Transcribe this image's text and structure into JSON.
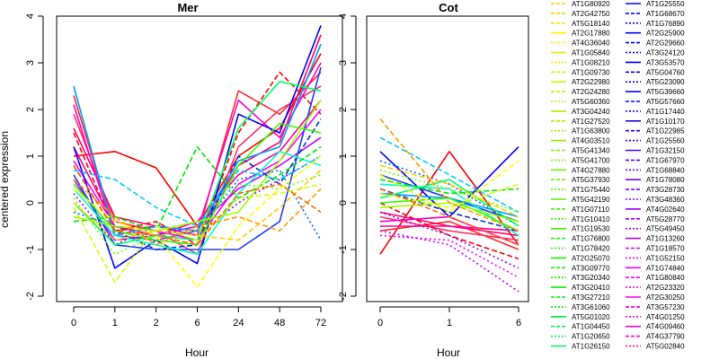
{
  "chart_data": [
    {
      "type": "line",
      "title": "Mer",
      "xlabel": "Hour",
      "ylabel": "centered expression",
      "categories": [
        "0",
        "1",
        "2",
        "6",
        "24",
        "48",
        "72"
      ],
      "ylim": [
        -2,
        4
      ],
      "yticks": [
        -2,
        -1,
        0,
        1,
        2,
        3,
        4
      ],
      "grid": false,
      "series": [
        {
          "color": "#FF0000",
          "dash": "solid",
          "values": [
            1.0,
            1.1,
            0.75,
            -0.5,
            1.0,
            1.6,
            3.2
          ]
        },
        {
          "color": "#FF2A2A",
          "dash": "solid",
          "values": [
            2.3,
            -0.6,
            -0.5,
            -0.7,
            2.4,
            1.9,
            2.8
          ]
        },
        {
          "color": "#FF3366",
          "dash": "solid",
          "values": [
            1.9,
            -0.4,
            -0.6,
            -1.1,
            1.2,
            2.0,
            2.5
          ]
        },
        {
          "color": "#FF0066",
          "dash": "solid",
          "values": [
            1.6,
            -0.3,
            -0.5,
            -0.6,
            0.8,
            1.3,
            3.6
          ]
        },
        {
          "color": "#FF0099",
          "dash": "solid",
          "values": [
            1.2,
            -0.5,
            -0.7,
            -0.4,
            0.6,
            1.1,
            2.2
          ]
        },
        {
          "color": "#FF0000",
          "dash": "dashed",
          "values": [
            1.5,
            -0.6,
            -0.4,
            -0.9,
            1.5,
            2.8,
            1.9
          ]
        },
        {
          "color": "#FF00CC",
          "dash": "solid",
          "values": [
            2.1,
            -0.7,
            -0.8,
            -0.6,
            2.2,
            1.4,
            3.0
          ]
        },
        {
          "color": "#FF00FF",
          "dash": "solid",
          "values": [
            0.9,
            -0.5,
            -0.6,
            -0.8,
            0.4,
            0.9,
            2.0
          ]
        },
        {
          "color": "#CC00FF",
          "dash": "solid",
          "values": [
            0.5,
            -0.8,
            -0.7,
            -0.5,
            0.3,
            0.8,
            1.4
          ]
        },
        {
          "color": "#9900FF",
          "dash": "dotted",
          "values": [
            0.2,
            -0.9,
            -0.5,
            -0.7,
            0.0,
            0.5,
            1.0
          ]
        },
        {
          "color": "#0000FF",
          "dash": "solid",
          "values": [
            1.2,
            -1.4,
            -0.8,
            -1.3,
            1.9,
            1.5,
            3.8
          ]
        },
        {
          "color": "#1E3CFF",
          "dash": "solid",
          "values": [
            0.6,
            -0.9,
            -1.0,
            -1.0,
            -1.0,
            -0.4,
            2.9
          ]
        },
        {
          "color": "#0033CC",
          "dash": "dashed",
          "values": [
            0.8,
            -0.6,
            -1.0,
            -0.9,
            1.0,
            0.4,
            1.8
          ]
        },
        {
          "color": "#0066FF",
          "dash": "dotted",
          "values": [
            -0.2,
            -0.5,
            -0.8,
            -0.6,
            0.5,
            0.7,
            -0.8
          ]
        },
        {
          "color": "#0099FF",
          "dash": "solid",
          "values": [
            2.5,
            -0.7,
            -0.5,
            -0.6,
            0.9,
            1.2,
            3.4
          ]
        },
        {
          "color": "#00CCFF",
          "dash": "dashed",
          "values": [
            0.7,
            0.5,
            -0.1,
            -0.5,
            0.7,
            0.5,
            1.0
          ]
        },
        {
          "color": "#00FFCC",
          "dash": "solid",
          "values": [
            0.3,
            -0.7,
            -0.9,
            -1.1,
            0.2,
            1.1,
            0.8
          ]
        },
        {
          "color": "#00FF66",
          "dash": "solid",
          "values": [
            0.0,
            -0.9,
            -0.7,
            -0.8,
            1.6,
            2.6,
            2.4
          ]
        },
        {
          "color": "#00E600",
          "dash": "dashed",
          "values": [
            -0.4,
            -0.3,
            -0.6,
            1.2,
            0.1,
            0.6,
            1.2
          ]
        },
        {
          "color": "#33FF00",
          "dash": "solid",
          "values": [
            0.4,
            -0.6,
            -0.8,
            -0.9,
            0.8,
            1.7,
            1.5
          ]
        },
        {
          "color": "#66FF00",
          "dash": "dotted",
          "values": [
            0.1,
            -1.1,
            -0.7,
            -0.6,
            0.4,
            0.3,
            0.6
          ]
        },
        {
          "color": "#99FF00",
          "dash": "solid",
          "values": [
            -0.3,
            -0.5,
            -0.6,
            -0.4,
            -0.2,
            0.9,
            2.2
          ]
        },
        {
          "color": "#CCFF00",
          "dash": "dashed",
          "values": [
            -0.1,
            -1.7,
            -0.5,
            -0.8,
            0.1,
            0.2,
            0.4
          ]
        },
        {
          "color": "#FFFF00",
          "dash": "dashed",
          "values": [
            0.3,
            -0.4,
            -0.7,
            -1.8,
            -0.5,
            0.3,
            1.0
          ]
        },
        {
          "color": "#FFCC00",
          "dash": "dashed",
          "values": [
            0.0,
            -0.8,
            -0.6,
            -0.7,
            -0.8,
            -0.1,
            0.7
          ]
        },
        {
          "color": "#FF9900",
          "dash": "dashed",
          "values": [
            0.5,
            -0.3,
            -0.9,
            -0.5,
            -0.3,
            -0.6,
            0.3
          ]
        },
        {
          "color": "#FF6600",
          "dash": "dashed",
          "values": [
            0.8,
            -0.6,
            -0.7,
            -0.9,
            0.2,
            0.4,
            -0.2
          ]
        }
      ]
    },
    {
      "type": "line",
      "title": "Cot",
      "xlabel": "Hour",
      "ylabel": "",
      "categories": [
        "0",
        "1",
        "6"
      ],
      "ylim": [
        -2,
        4
      ],
      "yticks": [
        -2,
        -1,
        0,
        1,
        2,
        3,
        4
      ],
      "grid": false,
      "series": [
        {
          "color": "#FF0000",
          "dash": "solid",
          "values": [
            -1.1,
            1.1,
            -0.9
          ]
        },
        {
          "color": "#FF2A2A",
          "dash": "solid",
          "values": [
            -0.6,
            -0.4,
            -1.0
          ]
        },
        {
          "color": "#FF3366",
          "dash": "solid",
          "values": [
            -0.3,
            -0.6,
            -0.8
          ]
        },
        {
          "color": "#FF0066",
          "dash": "solid",
          "values": [
            -0.2,
            -0.5,
            -0.7
          ]
        },
        {
          "color": "#FF0099",
          "dash": "solid",
          "values": [
            -0.5,
            -0.5,
            -0.6
          ]
        },
        {
          "color": "#FF0000",
          "dash": "dashed",
          "values": [
            0.0,
            -0.7,
            -1.2
          ]
        },
        {
          "color": "#FF00CC",
          "dash": "solid",
          "values": [
            -0.4,
            -0.3,
            -0.9
          ]
        },
        {
          "color": "#FF00FF",
          "dash": "dotted",
          "values": [
            -0.7,
            -0.8,
            -1.6
          ]
        },
        {
          "color": "#CC00FF",
          "dash": "dotted",
          "values": [
            -0.6,
            -0.9,
            -1.9
          ]
        },
        {
          "color": "#9900FF",
          "dash": "dotted",
          "values": [
            -0.2,
            -0.7,
            -1.4
          ]
        },
        {
          "color": "#0000FF",
          "dash": "solid",
          "values": [
            1.1,
            -0.3,
            1.2
          ]
        },
        {
          "color": "#1E3CFF",
          "dash": "solid",
          "values": [
            0.6,
            0.1,
            -0.4
          ]
        },
        {
          "color": "#0033CC",
          "dash": "dashed",
          "values": [
            0.3,
            -0.2,
            -0.6
          ]
        },
        {
          "color": "#0066FF",
          "dash": "dotted",
          "values": [
            0.9,
            0.4,
            -0.5
          ]
        },
        {
          "color": "#0099FF",
          "dash": "solid",
          "values": [
            0.2,
            0.1,
            -0.3
          ]
        },
        {
          "color": "#00CCFF",
          "dash": "dashed",
          "values": [
            1.4,
            0.6,
            -0.2
          ]
        },
        {
          "color": "#00FFCC",
          "dash": "solid",
          "values": [
            0.4,
            0.3,
            -0.7
          ]
        },
        {
          "color": "#00FF66",
          "dash": "solid",
          "values": [
            0.1,
            0.5,
            -0.5
          ]
        },
        {
          "color": "#00E600",
          "dash": "dashed",
          "values": [
            0.5,
            0.2,
            0.3
          ]
        },
        {
          "color": "#33FF00",
          "dash": "solid",
          "values": [
            0.0,
            0.1,
            -0.6
          ]
        },
        {
          "color": "#66FF00",
          "dash": "dotted",
          "values": [
            0.7,
            0.3,
            -0.2
          ]
        },
        {
          "color": "#99FF00",
          "dash": "solid",
          "values": [
            -0.1,
            0.0,
            -0.4
          ]
        },
        {
          "color": "#CCFF00",
          "dash": "dashed",
          "values": [
            0.2,
            -0.1,
            0.4
          ]
        },
        {
          "color": "#FFFF00",
          "dash": "dashed",
          "values": [
            0.6,
            -0.2,
            0.9
          ]
        },
        {
          "color": "#FFCC00",
          "dash": "dashed",
          "values": [
            0.8,
            0.4,
            -0.3
          ]
        },
        {
          "color": "#FF9900",
          "dash": "dashed",
          "values": [
            1.8,
            0.0,
            -0.6
          ]
        },
        {
          "color": "#FF6600",
          "dash": "dashed",
          "values": [
            0.3,
            -0.3,
            -0.9
          ]
        }
      ]
    }
  ],
  "legend": {
    "placement": "right",
    "columns": [
      [
        {
          "label": "AT1G80920",
          "color": "#FFCC00",
          "dash": "dashed"
        },
        {
          "label": "AT2G42750",
          "color": "#FFCC00",
          "dash": "dashed"
        },
        {
          "label": "AT5G18140",
          "color": "#FFDD00",
          "dash": "dashed"
        },
        {
          "label": "AT2G17880",
          "color": "#FFEE00",
          "dash": "solid"
        },
        {
          "label": "AT4G36040",
          "color": "#F0F000",
          "dash": "dotted"
        },
        {
          "label": "AT1G05840",
          "color": "#E6F000",
          "dash": "solid"
        },
        {
          "label": "AT1G08210",
          "color": "#DDF000",
          "dash": "dotted"
        },
        {
          "label": "AT1G09730",
          "color": "#D4F000",
          "dash": "dashed"
        },
        {
          "label": "AT2G22980",
          "color": "#CCF000",
          "dash": "solid"
        },
        {
          "label": "AT2G24280",
          "color": "#C2F000",
          "dash": "dashed"
        },
        {
          "label": "AT5G60360",
          "color": "#B8F000",
          "dash": "dotted"
        },
        {
          "label": "AT3G04240",
          "color": "#AEF000",
          "dash": "solid"
        },
        {
          "label": "AT1G27520",
          "color": "#A4F000",
          "dash": "dashed"
        },
        {
          "label": "AT1G63800",
          "color": "#9AF000",
          "dash": "dotted"
        },
        {
          "label": "AT4G03510",
          "color": "#90F000",
          "dash": "solid"
        },
        {
          "label": "AT5G41340",
          "color": "#86F000",
          "dash": "dashed"
        },
        {
          "label": "AT5G41700",
          "color": "#7CF000",
          "dash": "dotted"
        },
        {
          "label": "AT4G27880",
          "color": "#72F000",
          "dash": "solid"
        },
        {
          "label": "AT5G37930",
          "color": "#68F000",
          "dash": "dashed"
        },
        {
          "label": "AT1G75440",
          "color": "#5EF000",
          "dash": "dotted"
        },
        {
          "label": "AT5G42190",
          "color": "#54F000",
          "dash": "solid"
        },
        {
          "label": "AT1G07110",
          "color": "#4AF000",
          "dash": "dashed"
        },
        {
          "label": "AT1G10410",
          "color": "#40F000",
          "dash": "dotted"
        },
        {
          "label": "AT1G19530",
          "color": "#36F000",
          "dash": "solid"
        },
        {
          "label": "AT1G76800",
          "color": "#2CF000",
          "dash": "dashed"
        },
        {
          "label": "AT1G78420",
          "color": "#22F000",
          "dash": "dotted"
        },
        {
          "label": "AT2G25070",
          "color": "#18F000",
          "dash": "solid"
        },
        {
          "label": "AT3G09770",
          "color": "#0EF000",
          "dash": "dashed"
        },
        {
          "label": "AT3G20340",
          "color": "#04F000",
          "dash": "dotted"
        },
        {
          "label": "AT3G20410",
          "color": "#00F000",
          "dash": "solid"
        },
        {
          "label": "AT3G27210",
          "color": "#00F010",
          "dash": "dashed"
        },
        {
          "label": "AT3G61060",
          "color": "#00F020",
          "dash": "dotted"
        },
        {
          "label": "AT5G01020",
          "color": "#00F030",
          "dash": "solid"
        },
        {
          "label": "AT1G04450",
          "color": "#00F040",
          "dash": "dashed"
        },
        {
          "label": "AT1G20650",
          "color": "#00F050",
          "dash": "dotted"
        },
        {
          "label": "AT1G26150",
          "color": "#00F060",
          "dash": "solid"
        }
      ],
      [
        {
          "label": "AT1G25550",
          "color": "#0000FF",
          "dash": "solid"
        },
        {
          "label": "AT1G68670",
          "color": "#0000FF",
          "dash": "dashed"
        },
        {
          "label": "AT1G76890",
          "color": "#0000FF",
          "dash": "dotted"
        },
        {
          "label": "AT2G25900",
          "color": "#0000FF",
          "dash": "solid"
        },
        {
          "label": "AT2G29660",
          "color": "#0000FF",
          "dash": "dashed"
        },
        {
          "label": "AT3G24120",
          "color": "#0000FF",
          "dash": "dotted"
        },
        {
          "label": "AT3G53570",
          "color": "#0000FF",
          "dash": "solid"
        },
        {
          "label": "AT5G04760",
          "color": "#0000FF",
          "dash": "dashed"
        },
        {
          "label": "AT5G23090",
          "color": "#0000FF",
          "dash": "dotted"
        },
        {
          "label": "AT5G39660",
          "color": "#0000FF",
          "dash": "solid"
        },
        {
          "label": "AT5G57660",
          "color": "#0000FF",
          "dash": "dashed"
        },
        {
          "label": "AT1G17440",
          "color": "#1A00FF",
          "dash": "dotted"
        },
        {
          "label": "AT1G10170",
          "color": "#2600FF",
          "dash": "solid"
        },
        {
          "label": "AT1G22985",
          "color": "#3300FF",
          "dash": "dashed"
        },
        {
          "label": "AT1G25560",
          "color": "#4000FF",
          "dash": "dotted"
        },
        {
          "label": "AT1G32150",
          "color": "#4D00FF",
          "dash": "solid"
        },
        {
          "label": "AT1G67970",
          "color": "#5A00FF",
          "dash": "dashed"
        },
        {
          "label": "AT1G68840",
          "color": "#6600FF",
          "dash": "dotted"
        },
        {
          "label": "AT1G78080",
          "color": "#7300FF",
          "dash": "solid"
        },
        {
          "label": "AT3G28730",
          "color": "#8000FF",
          "dash": "dashed"
        },
        {
          "label": "AT3G48360",
          "color": "#8C00FF",
          "dash": "dotted"
        },
        {
          "label": "AT4G02640",
          "color": "#9900FF",
          "dash": "solid"
        },
        {
          "label": "AT5G28770",
          "color": "#A600FF",
          "dash": "dashed"
        },
        {
          "label": "AT5G49450",
          "color": "#B300FF",
          "dash": "dotted"
        },
        {
          "label": "AT1G13260",
          "color": "#C000FF",
          "dash": "solid"
        },
        {
          "label": "AT1G18570",
          "color": "#CC00FF",
          "dash": "dashed"
        },
        {
          "label": "AT1G52150",
          "color": "#D900FF",
          "dash": "dotted"
        },
        {
          "label": "AT1G74840",
          "color": "#E600FF",
          "dash": "solid"
        },
        {
          "label": "AT1G80840",
          "color": "#F200FF",
          "dash": "dashed"
        },
        {
          "label": "AT2G23320",
          "color": "#FF00FF",
          "dash": "dotted"
        },
        {
          "label": "AT2G30250",
          "color": "#FF00F0",
          "dash": "solid"
        },
        {
          "label": "AT3G57230",
          "color": "#FF00E0",
          "dash": "dashed"
        },
        {
          "label": "AT4G01250",
          "color": "#FF00D0",
          "dash": "dotted"
        },
        {
          "label": "AT4G09460",
          "color": "#FF00C0",
          "dash": "solid"
        },
        {
          "label": "AT4G37790",
          "color": "#FF00B0",
          "dash": "dashed"
        },
        {
          "label": "AT5G02840",
          "color": "#FF00A0",
          "dash": "dotted"
        }
      ]
    ]
  }
}
